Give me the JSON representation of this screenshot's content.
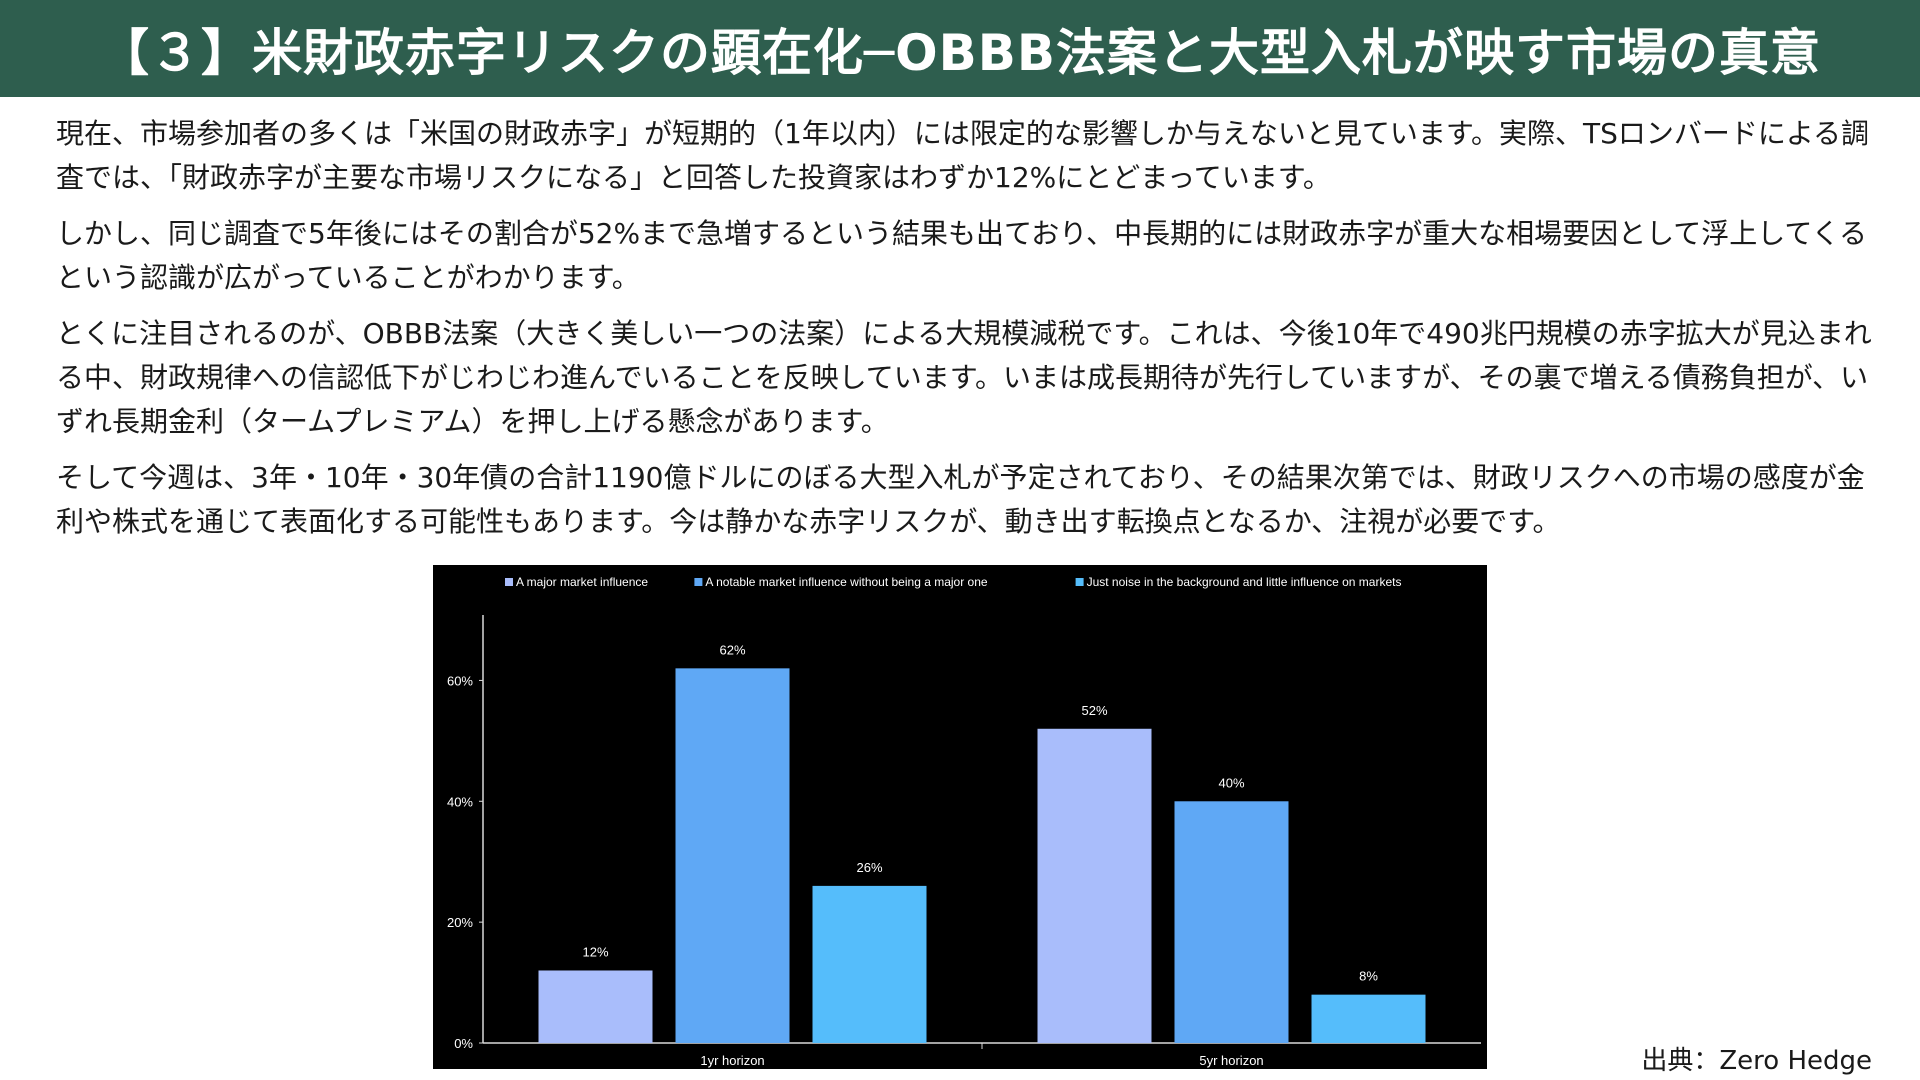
{
  "header": {
    "title": "【３】米財政赤字リスクの顕在化─OBBB法案と大型入札が映す市場の真意"
  },
  "paragraphs": [
    "現在、市場参加者の多くは「米国の財政赤字」が短期的（1年以内）には限定的な影響しか与えないと見ています。実際、TSロンバードによる調査では、「財政赤字が主要な市場リスクになる」と回答した投資家はわずか12%にとどまっています。",
    "しかし、同じ調査で5年後にはその割合が52%まで急増するという結果も出ており、中長期的には財政赤字が重大な相場要因として浮上してくるという認識が広がっていることがわかります。",
    "とくに注目されるのが、OBBB法案（大きく美しい一つの法案）による大規模減税です。これは、今後10年で490兆円規模の赤字拡大が見込まれる中、財政規律への信認低下がじわじわ進んでいることを反映しています。いまは成長期待が先行していますが、その裏で増える債務負担が、いずれ長期金利（タームプレミアム）を押し上げる懸念があります。",
    "そして今週は、3年・10年・30年債の合計1190億ドルにのぼる大型入札が予定されており、その結果次第では、財政リスクへの市場の感度が金利や株式を通じて表面化する可能性もあります。今は静かな赤字リスクが、動き出す転換点となるか、注視が必要です。"
  ],
  "source": "出典：Zero Hedge",
  "chart_data": {
    "type": "bar",
    "categories": [
      "1yr horizon",
      "5yr horizon"
    ],
    "series": [
      {
        "name": "A major market influence",
        "values": [
          12,
          52
        ],
        "color": "#a9bdfb"
      },
      {
        "name": "A notable market influence without being a major one",
        "values": [
          62,
          40
        ],
        "color": "#5fa8f5"
      },
      {
        "name": "Just noise in the background and little influence on markets",
        "values": [
          26,
          8
        ],
        "color": "#55bdfb"
      }
    ],
    "value_labels": [
      [
        "12%",
        "52%"
      ],
      [
        "62%",
        "40%"
      ],
      [
        "26%",
        "8%"
      ]
    ],
    "ylim": [
      0,
      70
    ],
    "yticks": [
      0,
      20,
      40,
      60
    ],
    "ytick_labels": [
      "0%",
      "20%",
      "40%",
      "60%"
    ],
    "legend_position": "top",
    "background": "#000000",
    "grid": false
  }
}
